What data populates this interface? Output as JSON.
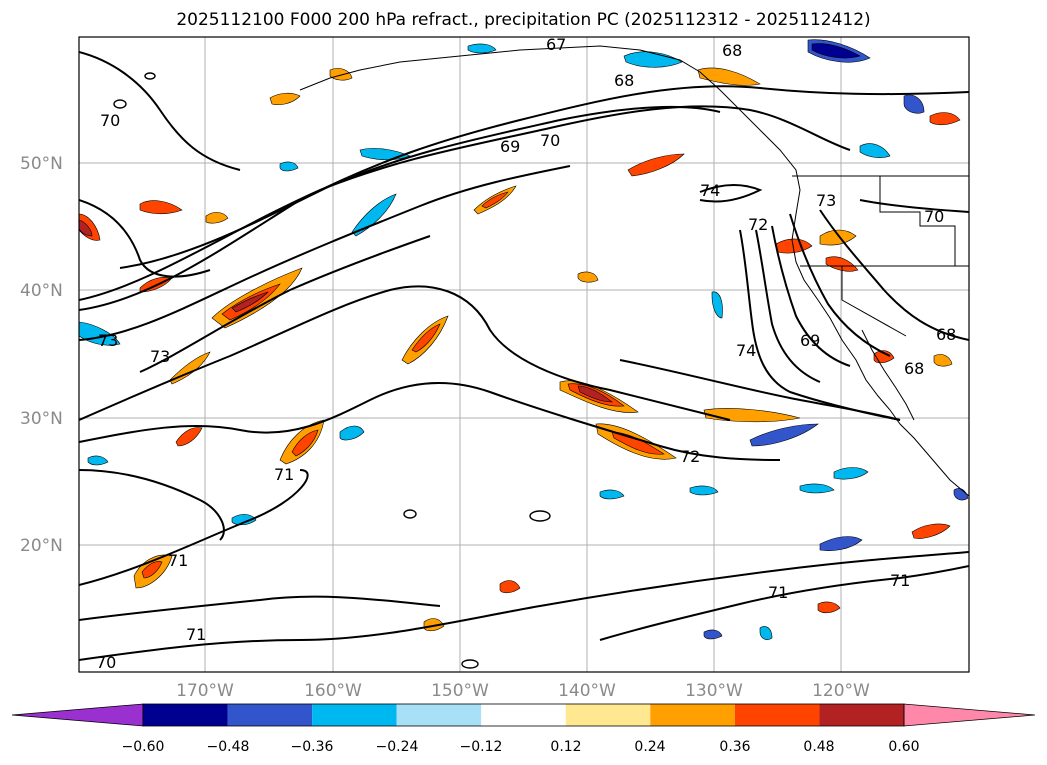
{
  "title": "2025112100 F000 200 hPa refract., precipitation PC (2025112312 - 2025112412)",
  "lat_labels": [
    "50°N",
    "40°N",
    "30°N",
    "20°N"
  ],
  "lon_labels": [
    "170°W",
    "160°W",
    "150°W",
    "140°W",
    "130°W",
    "120°W"
  ],
  "contour_labels": [
    "67",
    "68",
    "68",
    "70",
    "69",
    "70",
    "74",
    "72",
    "73",
    "70",
    "73",
    "73",
    "74",
    "69",
    "68",
    "68",
    "72",
    "71",
    "71",
    "71",
    "71",
    "71",
    "70"
  ],
  "colorbar": {
    "ticks": [
      "−0.60",
      "−0.48",
      "−0.36",
      "−0.24",
      "−0.12",
      "0.12",
      "0.24",
      "0.36",
      "0.48",
      "0.60"
    ],
    "colors": [
      "#9b30d0",
      "#000090",
      "#3355cc",
      "#00b8f0",
      "#a8e0f8",
      "#ffffff",
      "#ffe890",
      "#ffa000",
      "#ff4400",
      "#b22222",
      "#ff88aa"
    ],
    "extend": "both"
  }
}
